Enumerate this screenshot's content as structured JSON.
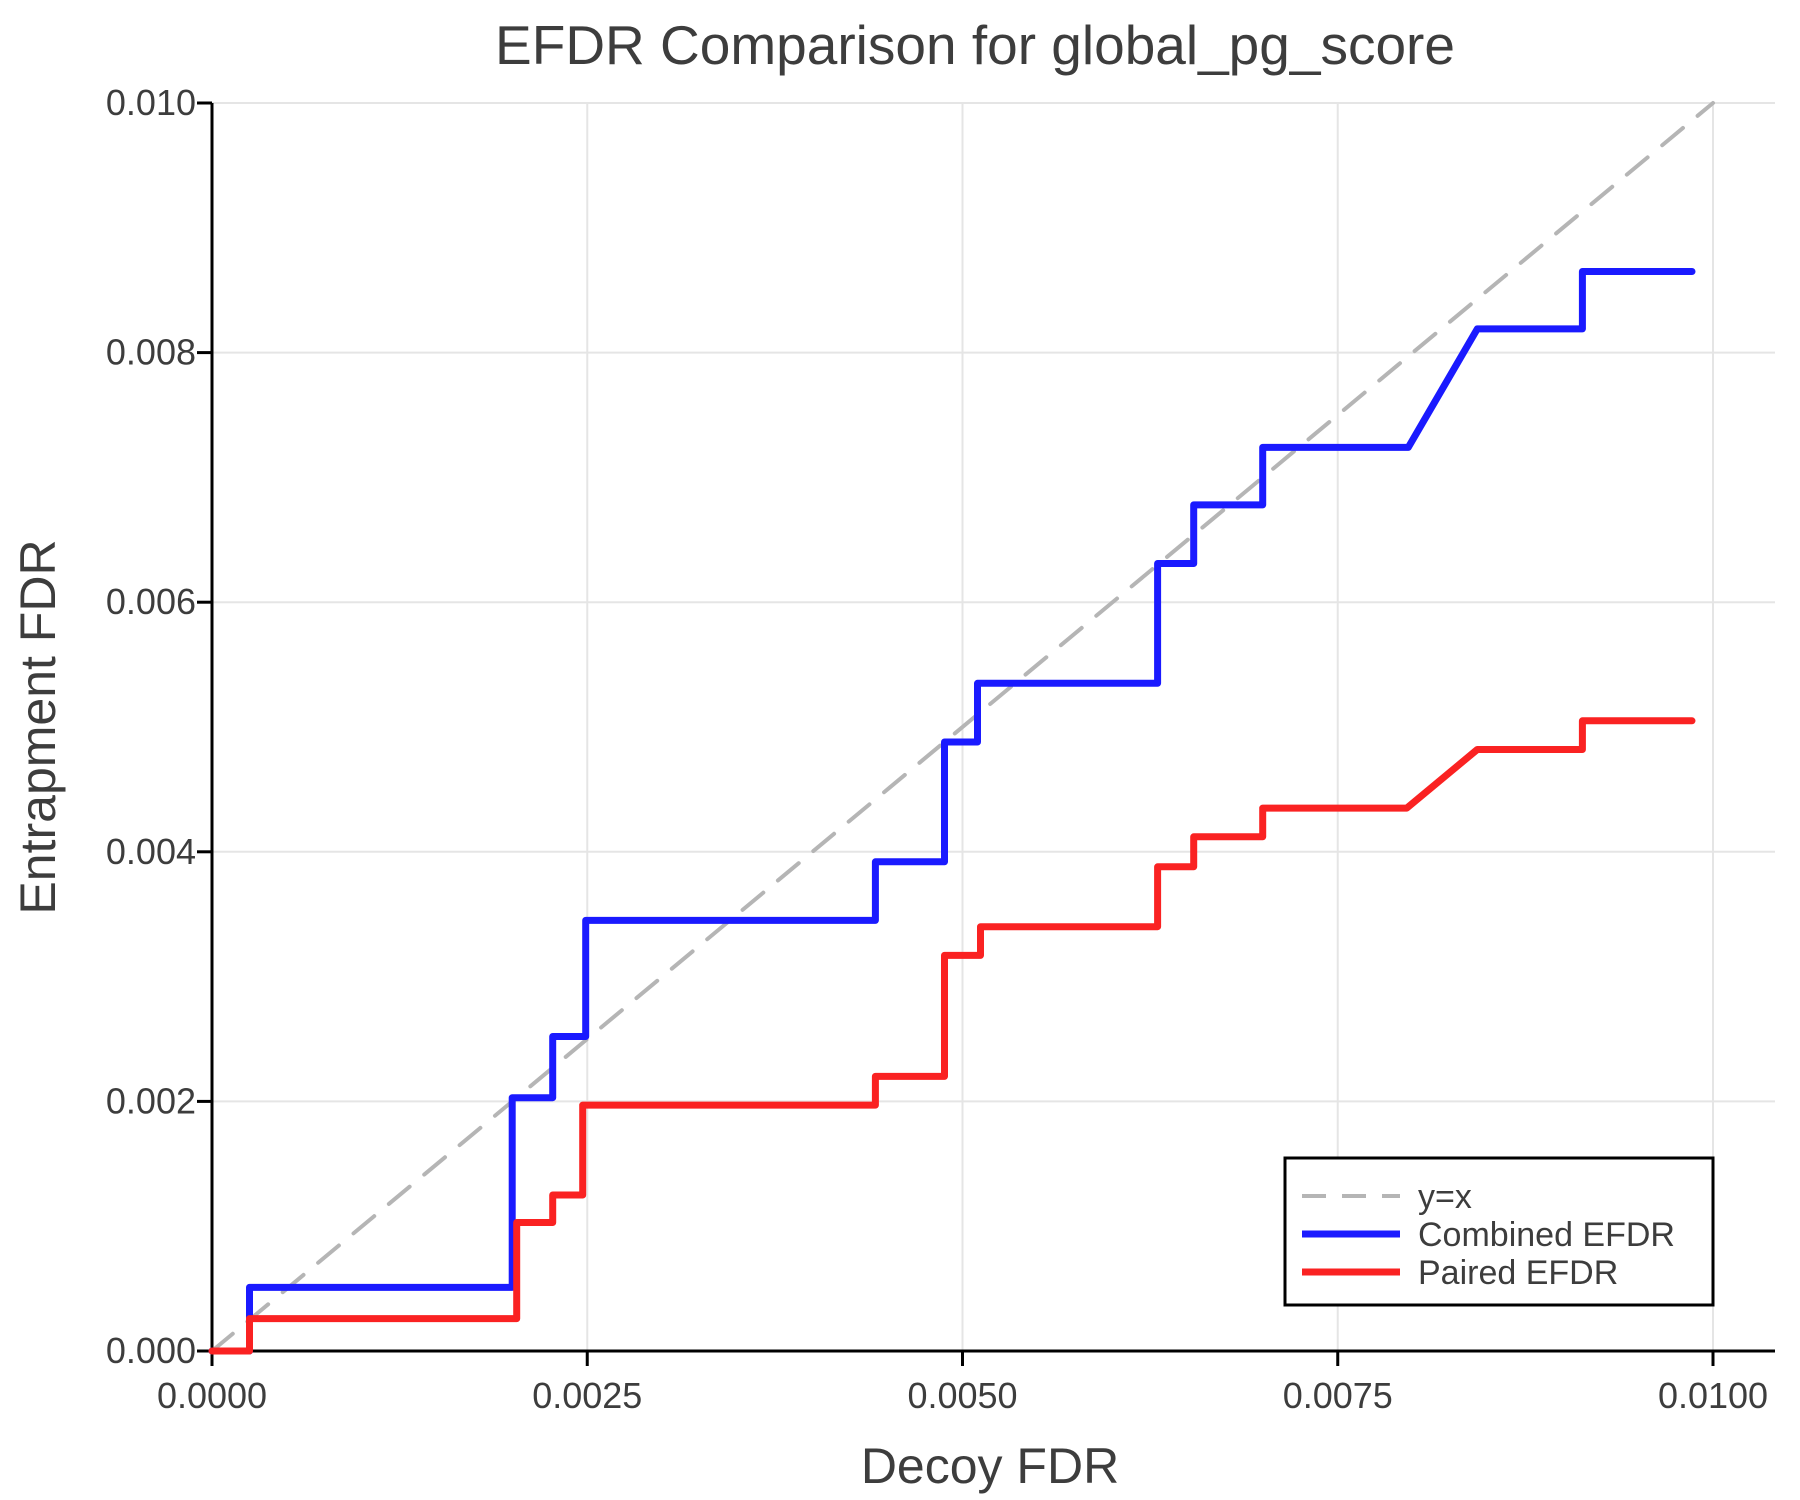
{
  "chart_data": {
    "type": "line",
    "title": "EFDR Comparison for global_pg_score",
    "xlabel": "Decoy FDR",
    "ylabel": "Entrapment FDR",
    "xlim": [
      0.0,
      0.01
    ],
    "ylim": [
      0.0,
      0.01
    ],
    "grid": true,
    "legend_position": "lower right",
    "xticks": [
      {
        "value": 0.0,
        "label": "0.0000"
      },
      {
        "value": 0.0025,
        "label": "0.0025"
      },
      {
        "value": 0.005,
        "label": "0.0050"
      },
      {
        "value": 0.0075,
        "label": "0.0075"
      },
      {
        "value": 0.01,
        "label": "0.0100"
      }
    ],
    "yticks": [
      {
        "value": 0.0,
        "label": "0.000"
      },
      {
        "value": 0.002,
        "label": "0.002"
      },
      {
        "value": 0.004,
        "label": "0.004"
      },
      {
        "value": 0.006,
        "label": "0.006"
      },
      {
        "value": 0.008,
        "label": "0.008"
      },
      {
        "value": 0.01,
        "label": "0.010"
      }
    ],
    "colors": {
      "identity": "#b5b5b5",
      "combined": "#1a1aff",
      "paired": "#fa2222",
      "grid": "#e5e5e5",
      "axis": "#000000",
      "text": "#3d3d3d"
    },
    "series": [
      {
        "name": "y=x",
        "color": "#b5b5b5",
        "dash": true,
        "width": 4,
        "points": [
          [
            0.0,
            0.0
          ],
          [
            0.01,
            0.01
          ]
        ]
      },
      {
        "name": "Combined EFDR",
        "color": "#1a1aff",
        "dash": false,
        "width": 7,
        "points": [
          [
            0.0,
            0.0
          ],
          [
            0.00025,
            0.0
          ],
          [
            0.00025,
            0.00051
          ],
          [
            0.002,
            0.00051
          ],
          [
            0.002,
            0.00203
          ],
          [
            0.00227,
            0.00203
          ],
          [
            0.00227,
            0.00252
          ],
          [
            0.00249,
            0.00252
          ],
          [
            0.00249,
            0.00345
          ],
          [
            0.00442,
            0.00345
          ],
          [
            0.00442,
            0.00392
          ],
          [
            0.00488,
            0.00392
          ],
          [
            0.00488,
            0.00488
          ],
          [
            0.0051,
            0.00488
          ],
          [
            0.0051,
            0.00535
          ],
          [
            0.0063,
            0.00535
          ],
          [
            0.0063,
            0.00631
          ],
          [
            0.00654,
            0.00631
          ],
          [
            0.00654,
            0.00678
          ],
          [
            0.007,
            0.00678
          ],
          [
            0.007,
            0.00724
          ],
          [
            0.00797,
            0.00724
          ],
          [
            0.00843,
            0.00819
          ],
          [
            0.00913,
            0.00819
          ],
          [
            0.00913,
            0.00865
          ],
          [
            0.00986,
            0.00865
          ]
        ]
      },
      {
        "name": "Paired EFDR",
        "color": "#fa2222",
        "dash": false,
        "width": 7,
        "points": [
          [
            0.0,
            0.0
          ],
          [
            0.00025,
            0.0
          ],
          [
            0.00025,
            0.00026
          ],
          [
            0.00203,
            0.00026
          ],
          [
            0.00203,
            0.00103
          ],
          [
            0.00227,
            0.00103
          ],
          [
            0.00227,
            0.00125
          ],
          [
            0.00247,
            0.00125
          ],
          [
            0.00247,
            0.00197
          ],
          [
            0.00442,
            0.00197
          ],
          [
            0.00442,
            0.0022
          ],
          [
            0.00488,
            0.0022
          ],
          [
            0.00488,
            0.00317
          ],
          [
            0.00512,
            0.00317
          ],
          [
            0.00512,
            0.0034
          ],
          [
            0.0063,
            0.0034
          ],
          [
            0.0063,
            0.00388
          ],
          [
            0.00654,
            0.00388
          ],
          [
            0.00654,
            0.00412
          ],
          [
            0.007,
            0.00412
          ],
          [
            0.007,
            0.00435
          ],
          [
            0.00796,
            0.00435
          ],
          [
            0.00843,
            0.00482
          ],
          [
            0.00913,
            0.00482
          ],
          [
            0.00913,
            0.00505
          ],
          [
            0.00986,
            0.00505
          ]
        ]
      }
    ]
  }
}
